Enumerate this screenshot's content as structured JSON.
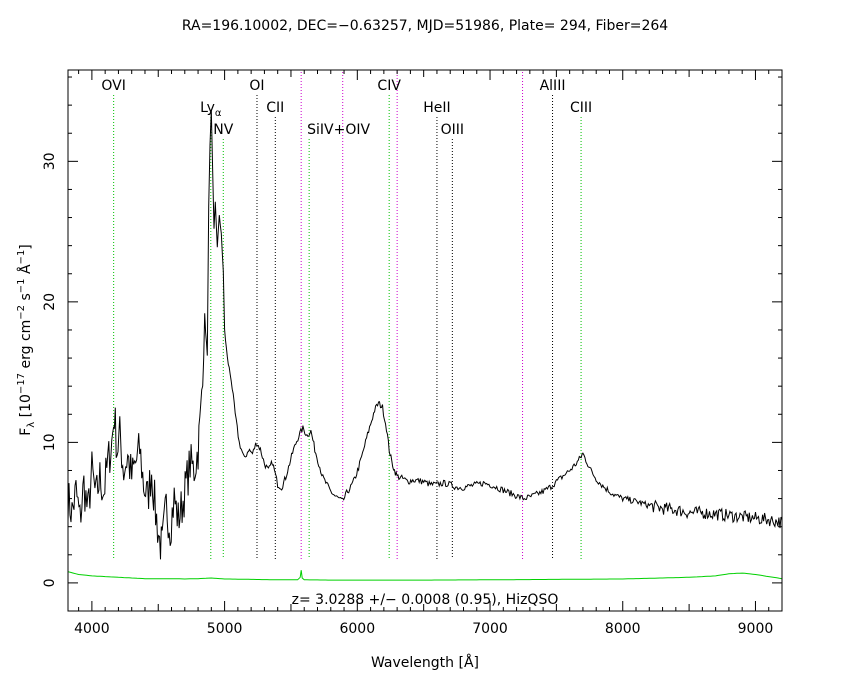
{
  "title": "RA=196.10002, DEC=−0.63257, MJD=51986, Plate= 294, Fiber=264",
  "annotation": "z= 3.0288 +/− 0.0008 (0.95), HizQSO",
  "colors": {
    "spectrum": "#000000",
    "error": "#00d000",
    "emission_line": "#00c000",
    "absorption_line": "#000000",
    "sky_line": "#cc00cc"
  },
  "chart_data": {
    "type": "line",
    "title": "RA=196.10002, DEC=−0.63257, MJD=51986, Plate= 294, Fiber=264",
    "xlabel": "Wavelength [Å]",
    "ylabel_parts": {
      "F": "F",
      "sub": "λ",
      "a": " [10",
      "e1": "−17",
      "b": " erg cm",
      "e2": "−2",
      "c": " s",
      "e3": "−1",
      "d": " Å",
      "e4": "−1",
      "f": "]"
    },
    "xlim": [
      3820,
      9200
    ],
    "ylim": [
      -2,
      36.5
    ],
    "xticks": [
      4000,
      5000,
      6000,
      7000,
      8000,
      9000
    ],
    "xtick_labels": [
      "4000",
      "5000",
      "6000",
      "7000",
      "8000",
      "9000"
    ],
    "yticks": [
      0,
      10,
      20,
      30
    ],
    "ytick_labels": [
      "0",
      "10",
      "20",
      "30"
    ],
    "grid": false,
    "legend": "none",
    "series": [
      {
        "role": "flux",
        "x": [
          3820,
          3850,
          3880,
          3910,
          3940,
          3970,
          4000,
          4030,
          4060,
          4090,
          4120,
          4150,
          4170,
          4190,
          4210,
          4240,
          4270,
          4300,
          4330,
          4360,
          4390,
          4420,
          4450,
          4480,
          4510,
          4530,
          4560,
          4590,
          4620,
          4650,
          4680,
          4710,
          4740,
          4770,
          4800,
          4820,
          4850,
          4870,
          4880,
          4890,
          4900,
          4910,
          4920,
          4930,
          4945,
          4960,
          4975,
          4990,
          5000,
          5020,
          5050,
          5080,
          5110,
          5150,
          5180,
          5210,
          5240,
          5270,
          5300,
          5330,
          5360,
          5400,
          5430,
          5460,
          5490,
          5520,
          5560,
          5590,
          5620,
          5650,
          5680,
          5710,
          5740,
          5770,
          5800,
          5830,
          5860,
          5890,
          5920,
          5950,
          5980,
          6010,
          6040,
          6070,
          6100,
          6130,
          6160,
          6190,
          6220,
          6240,
          6260,
          6280,
          6300,
          6320,
          6350,
          6380,
          6410,
          6450,
          6500,
          6550,
          6600,
          6650,
          6700,
          6750,
          6800,
          6850,
          6900,
          6950,
          7000,
          7050,
          7100,
          7150,
          7200,
          7250,
          7300,
          7350,
          7400,
          7450,
          7500,
          7550,
          7600,
          7650,
          7680,
          7700,
          7730,
          7760,
          7800,
          7850,
          7900,
          7950,
          8000,
          8100,
          8200,
          8300,
          8400,
          8500,
          8600,
          8700,
          8800,
          8900,
          9000,
          9100,
          9200
        ],
        "y": [
          6.0,
          5.0,
          6.5,
          4.5,
          7.0,
          5.0,
          8.0,
          6.0,
          7.5,
          6.5,
          8.5,
          10.0,
          12.0,
          9.5,
          10.5,
          8.0,
          9.0,
          7.5,
          8.5,
          9.5,
          7.0,
          6.0,
          8.0,
          5.0,
          3.0,
          2.5,
          5.5,
          4.0,
          6.0,
          4.5,
          5.5,
          7.0,
          8.5,
          8.0,
          9.5,
          12.0,
          19.0,
          16.0,
          27.0,
          31.0,
          33.5,
          29.0,
          25.0,
          27.0,
          24.0,
          26.0,
          25.0,
          22.0,
          18.0,
          16.0,
          14.5,
          12.0,
          10.0,
          8.8,
          9.5,
          9.2,
          10.0,
          9.5,
          8.5,
          8.0,
          8.6,
          7.0,
          6.8,
          7.5,
          8.5,
          9.5,
          10.5,
          11.0,
          10.5,
          10.8,
          9.5,
          8.5,
          7.5,
          7.0,
          6.5,
          6.2,
          6.0,
          5.8,
          6.4,
          6.8,
          7.4,
          8.2,
          9.2,
          10.3,
          11.3,
          12.3,
          12.8,
          12.5,
          11.0,
          9.5,
          8.6,
          8.0,
          7.6,
          7.5,
          7.4,
          7.2,
          7.3,
          7.3,
          7.2,
          7.0,
          7.0,
          7.1,
          7.0,
          6.8,
          6.8,
          6.9,
          7.0,
          7.1,
          7.0,
          6.8,
          6.6,
          6.4,
          6.2,
          6.0,
          6.1,
          6.3,
          6.5,
          6.8,
          7.2,
          7.6,
          8.0,
          8.5,
          8.9,
          9.2,
          8.6,
          8.0,
          7.4,
          6.9,
          6.5,
          6.2,
          6.0,
          5.8,
          5.5,
          5.3,
          5.2,
          5.0,
          5.0,
          4.9,
          4.8,
          4.7,
          4.6,
          4.5,
          4.3
        ]
      },
      {
        "role": "error",
        "x": [
          3820,
          3900,
          4000,
          4100,
          4200,
          4300,
          4400,
          4500,
          4600,
          4700,
          4800,
          4900,
          5000,
          5200,
          5400,
          5550,
          5570,
          5577,
          5585,
          5600,
          5800,
          6000,
          6500,
          7000,
          7500,
          8000,
          8300,
          8500,
          8700,
          8800,
          8900,
          9000,
          9100,
          9200
        ],
        "y": [
          0.8,
          0.6,
          0.5,
          0.45,
          0.4,
          0.35,
          0.3,
          0.3,
          0.3,
          0.28,
          0.3,
          0.35,
          0.28,
          0.25,
          0.22,
          0.22,
          0.4,
          0.9,
          0.35,
          0.22,
          0.2,
          0.2,
          0.2,
          0.22,
          0.25,
          0.28,
          0.35,
          0.4,
          0.5,
          0.65,
          0.7,
          0.6,
          0.45,
          0.3
        ]
      }
    ],
    "line_markers": [
      {
        "label": "OVI",
        "x": 4164,
        "kind": "emission",
        "row": 0,
        "align": "center"
      },
      {
        "label": "Lyα",
        "x": 4896,
        "kind": "emission",
        "row": 1,
        "align": "center"
      },
      {
        "label": "NV",
        "x": 4990,
        "kind": "emission",
        "row": 2,
        "align": "center"
      },
      {
        "label": "OI",
        "x": 5244,
        "kind": "absorption",
        "row": 0,
        "align": "center"
      },
      {
        "label": "CII",
        "x": 5382,
        "kind": "absorption",
        "row": 1,
        "align": "center"
      },
      {
        "label": "SiIV+OIV",
        "x": 5637,
        "kind": "emission",
        "row": 2,
        "align": "left"
      },
      {
        "label": "CIV",
        "x": 6240,
        "kind": "emission",
        "row": 0,
        "align": "center"
      },
      {
        "label": "HeII",
        "x": 6600,
        "kind": "absorption",
        "row": 1,
        "align": "center"
      },
      {
        "label": "OIII",
        "x": 6716,
        "kind": "absorption",
        "row": 2,
        "align": "center"
      },
      {
        "label": "AlIII",
        "x": 7471,
        "kind": "absorption",
        "row": 0,
        "align": "center"
      },
      {
        "label": "CIII",
        "x": 7686,
        "kind": "emission",
        "row": 1,
        "align": "center"
      }
    ],
    "sky_lines": [
      5577,
      5890,
      6300,
      7245
    ]
  }
}
